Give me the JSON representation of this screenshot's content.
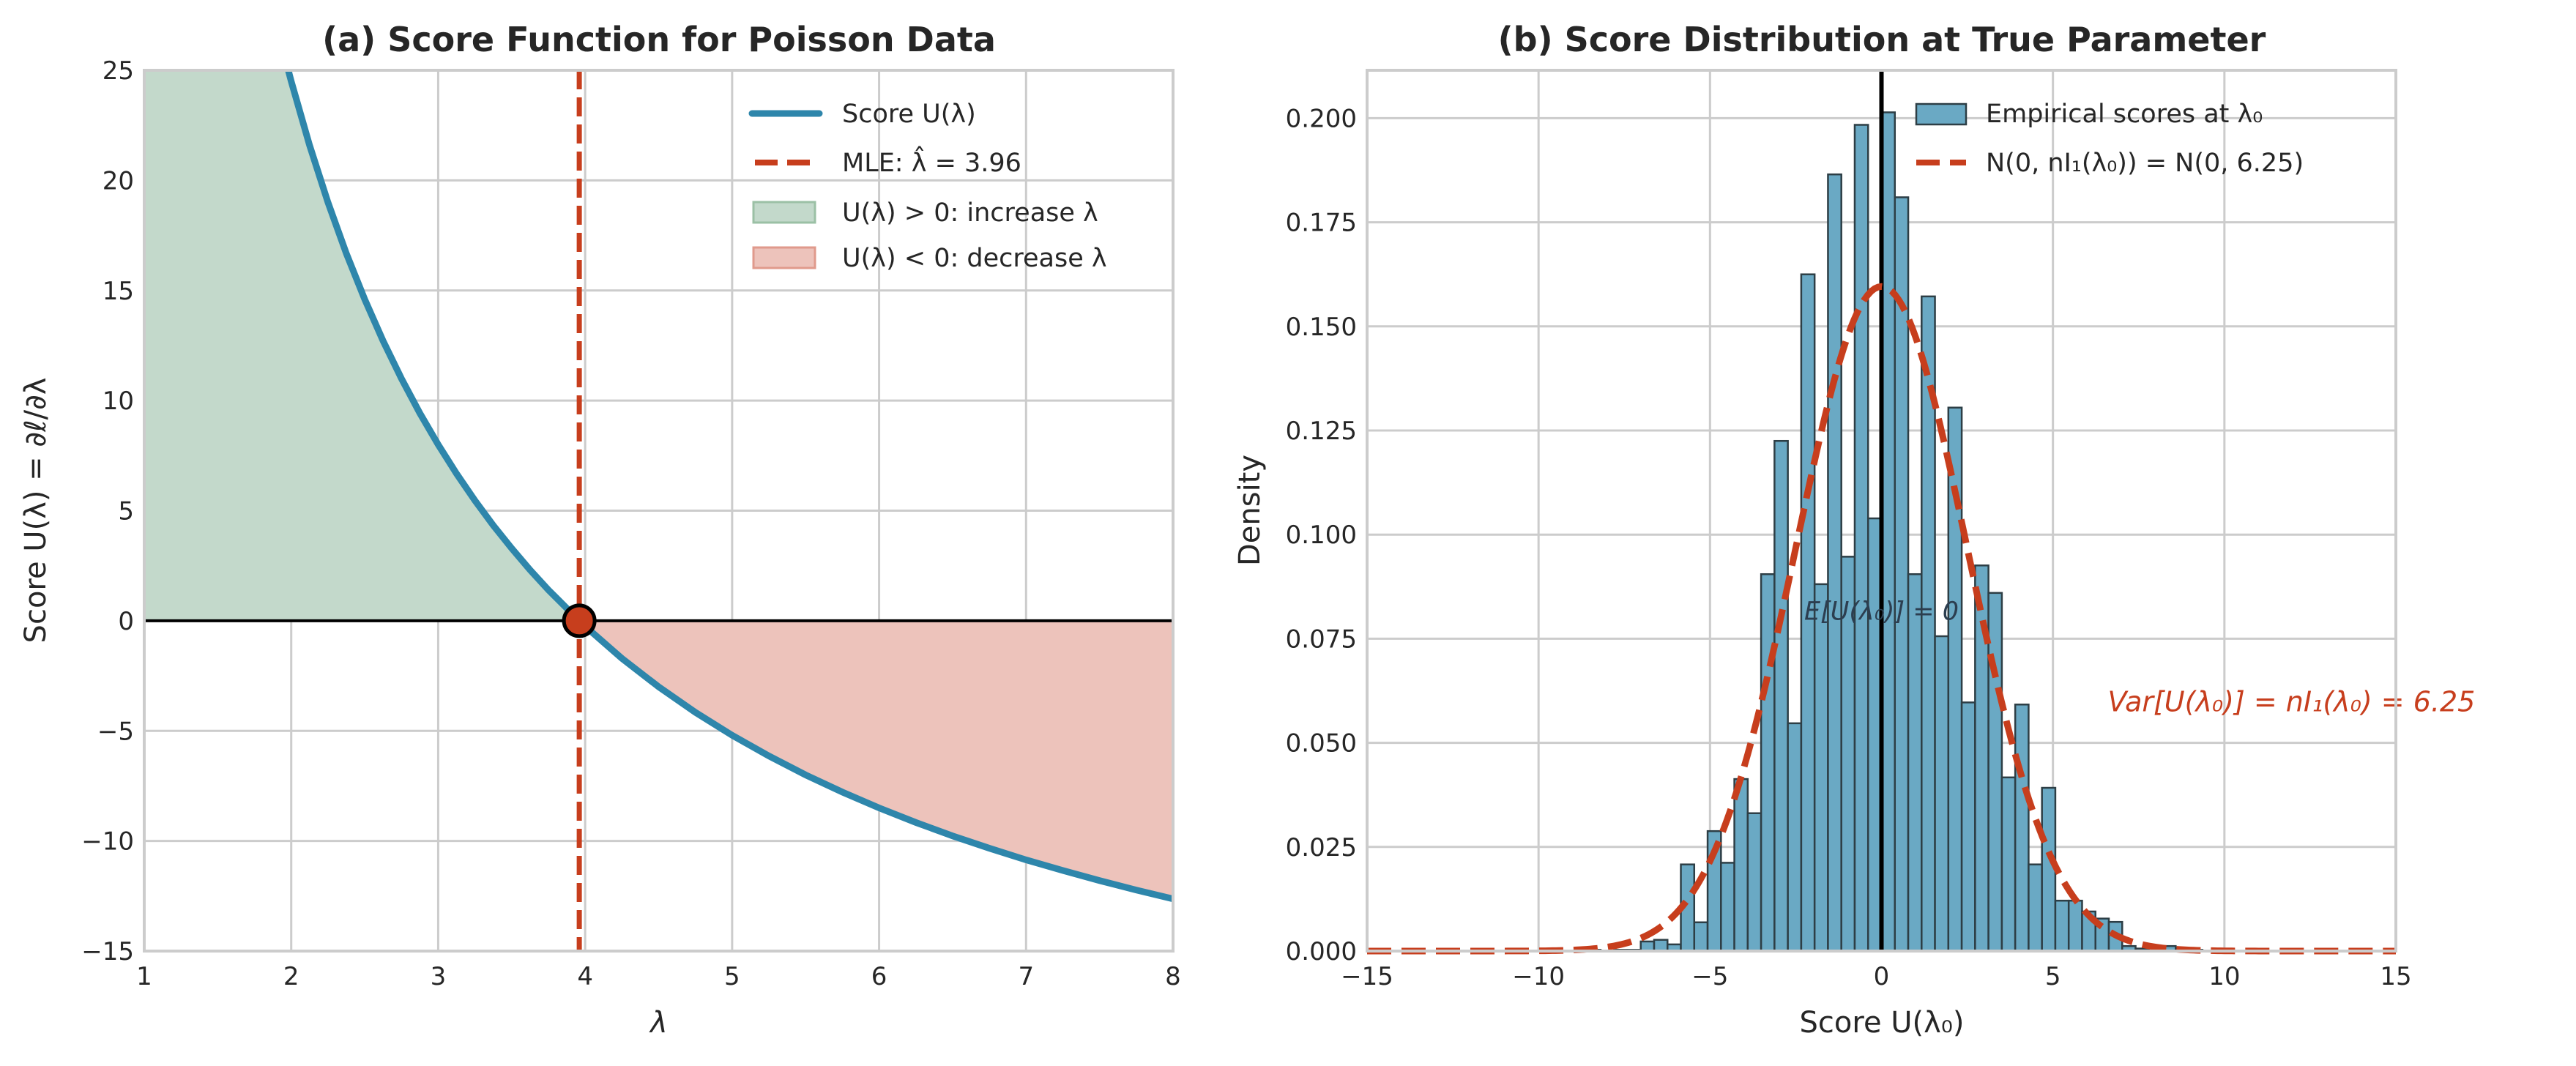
{
  "colors": {
    "score_line": "#2e86ab",
    "mle_line": "#c73e1d",
    "positive_fill": "#c3d9cb",
    "positive_edge": "#9bc0a5",
    "negative_fill": "#edc3bb",
    "negative_edge": "#e09a8c",
    "histogram_fill": "#6aa9c4",
    "histogram_edge": "#2d3e45",
    "normal_curve": "#c73e1d",
    "var_annotation": "#c73e1d",
    "mean_annotation": "#2c3e50",
    "grid": "#cccccc"
  },
  "chart_data": [
    {
      "type": "line",
      "title": "(a) Score Function for Poisson Data",
      "xlabel": "λ",
      "ylabel": "Score U(λ) = ∂ℓ/∂λ",
      "xlim": [
        1,
        8
      ],
      "ylim": [
        -15,
        25
      ],
      "xticks": [
        "1",
        "2",
        "3",
        "4",
        "5",
        "6",
        "7",
        "8"
      ],
      "yticks": [
        "−15",
        "−10",
        "−5",
        "0",
        "5",
        "10",
        "15",
        "20",
        "25"
      ],
      "grid": true,
      "legend_placement": "top-right",
      "legend": [
        {
          "label": "Score U(λ)",
          "kind": "line"
        },
        {
          "label": "MLE: λ̂ = 3.96",
          "kind": "dashed"
        },
        {
          "label": "U(λ) > 0: increase λ",
          "kind": "patch-positive"
        },
        {
          "label": "U(λ) < 0: decrease λ",
          "kind": "patch-negative"
        }
      ],
      "mle": 3.96,
      "series": [
        {
          "name": "Score U(λ)",
          "x": [
            1.98,
            2,
            2.125,
            2.25,
            2.375,
            2.5,
            2.625,
            2.75,
            2.875,
            3,
            3.125,
            3.25,
            3.375,
            3.5,
            3.625,
            3.75,
            3.96,
            4,
            4.25,
            4.5,
            4.75,
            5,
            5.25,
            5.5,
            5.75,
            6,
            6.25,
            6.5,
            6.75,
            7,
            7.25,
            7.5,
            7.75,
            8
          ],
          "y": [
            25.0,
            24.5,
            21.59,
            19.0,
            16.68,
            14.6,
            12.71,
            11.0,
            9.43,
            8.0,
            6.68,
            5.46,
            4.33,
            3.29,
            2.31,
            1.4,
            0,
            -0.25,
            -1.71,
            -3.0,
            -4.16,
            -5.2,
            -6.14,
            -7.0,
            -7.78,
            -8.5,
            -9.16,
            -9.77,
            -10.33,
            -10.86,
            -11.34,
            -11.8,
            -12.23,
            -12.63
          ]
        }
      ]
    },
    {
      "type": "bar",
      "title": "(b) Score Distribution at True Parameter",
      "xlabel": "Score U(λ₀)",
      "ylabel": "Density",
      "xlim": [
        -15,
        15
      ],
      "ylim": [
        0,
        0.2115
      ],
      "xticks": [
        "−15",
        "−10",
        "−5",
        "0",
        "5",
        "10",
        "15"
      ],
      "yticks": [
        "0.000",
        "0.025",
        "0.050",
        "0.075",
        "0.100",
        "0.125",
        "0.150",
        "0.175",
        "0.200"
      ],
      "grid": true,
      "legend_placement": "top-right",
      "legend": [
        {
          "label": "Empirical scores at λ₀",
          "kind": "patch-hist"
        },
        {
          "label": "N(0, nI₁(λ₀)) = N(0, 6.25)",
          "kind": "dashed"
        }
      ],
      "histogram": {
        "bin_start": -8.58,
        "bin_width": 0.39,
        "densities": [
          0.0003,
          0,
          0.0003,
          0.0003,
          0.0023,
          0.0027,
          0.0016,
          0.0208,
          0.0069,
          0.0288,
          0.0212,
          0.0413,
          0.0331,
          0.0905,
          0.1225,
          0.0547,
          0.1625,
          0.0881,
          0.1865,
          0.0947,
          0.1984,
          0.1039,
          0.2014,
          0.181,
          0.0905,
          0.1572,
          0.0756,
          0.1305,
          0.0597,
          0.0926,
          0.086,
          0.0417,
          0.0592,
          0.0208,
          0.0392,
          0.0121,
          0.0121,
          0.0095,
          0.0078,
          0.007,
          0.0012,
          0.0006,
          0.0012,
          0.0012,
          0.0003,
          0.0003
        ]
      },
      "normal": {
        "mean": 0,
        "variance": 6.25
      },
      "annotations": [
        {
          "text": "E[U(λ₀)] = 0",
          "x": 0,
          "y": 0.082
        },
        {
          "text": "Var[U(λ₀)] = nI₁(λ₀) = 6.25",
          "x": 6,
          "y": 0.06
        }
      ]
    }
  ]
}
